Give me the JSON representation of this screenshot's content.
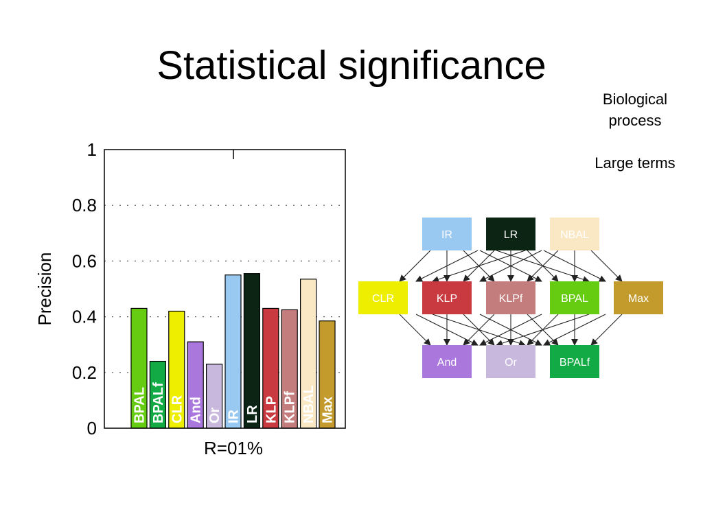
{
  "slide": {
    "title": "Statistical significance",
    "note_line1": "Biological",
    "note_line2": "process",
    "note_line3": "Large terms"
  },
  "chart_data": {
    "type": "bar",
    "xlabel": "R=01%",
    "ylabel": "Precision",
    "ylim": [
      0,
      1
    ],
    "yticks": [
      "0",
      "0.2",
      "0.4",
      "0.6",
      "0.8",
      "1"
    ],
    "grid": "dotted horizontal",
    "categories": [
      "BPAL",
      "BPALf",
      "CLR",
      "And",
      "Or",
      "IR",
      "LR",
      "KLP",
      "KLPf",
      "NBAL",
      "Max"
    ],
    "values": [
      0.43,
      0.24,
      0.42,
      0.31,
      0.23,
      0.55,
      0.555,
      0.43,
      0.425,
      0.535,
      0.385
    ],
    "colors": [
      "#66cc11",
      "#11aa44",
      "#eeee00",
      "#aa77dd",
      "#c8b8dd",
      "#99c8f0",
      "#0b2414",
      "#c83a3f",
      "#c47d7d",
      "#fae8c4",
      "#c39a2c"
    ]
  },
  "diagram": {
    "nodes": [
      {
        "id": "IR",
        "label": "IR",
        "color": "#99c8f0"
      },
      {
        "id": "LR",
        "label": "LR",
        "color": "#0b2414"
      },
      {
        "id": "NBAL",
        "label": "NBAL",
        "color": "#fae8c4"
      },
      {
        "id": "CLR",
        "label": "CLR",
        "color": "#eeee00"
      },
      {
        "id": "KLP",
        "label": "KLP",
        "color": "#c83a3f"
      },
      {
        "id": "KLPf",
        "label": "KLPf",
        "color": "#c47d7d"
      },
      {
        "id": "BPAL",
        "label": "BPAL",
        "color": "#66cc11"
      },
      {
        "id": "Max",
        "label": "Max",
        "color": "#c39a2c"
      },
      {
        "id": "And",
        "label": "And",
        "color": "#aa77dd"
      },
      {
        "id": "Or",
        "label": "Or",
        "color": "#c8b8dd"
      },
      {
        "id": "BPALf",
        "label": "BPALf",
        "color": "#11aa44"
      }
    ],
    "edges": [
      [
        "IR",
        "CLR"
      ],
      [
        "IR",
        "KLP"
      ],
      [
        "IR",
        "KLPf"
      ],
      [
        "IR",
        "BPAL"
      ],
      [
        "IR",
        "Max"
      ],
      [
        "LR",
        "CLR"
      ],
      [
        "LR",
        "KLP"
      ],
      [
        "LR",
        "KLPf"
      ],
      [
        "LR",
        "BPAL"
      ],
      [
        "LR",
        "Max"
      ],
      [
        "NBAL",
        "CLR"
      ],
      [
        "NBAL",
        "KLP"
      ],
      [
        "NBAL",
        "KLPf"
      ],
      [
        "NBAL",
        "BPAL"
      ],
      [
        "NBAL",
        "Max"
      ],
      [
        "CLR",
        "And"
      ],
      [
        "CLR",
        "Or"
      ],
      [
        "CLR",
        "BPALf"
      ],
      [
        "KLP",
        "And"
      ],
      [
        "KLP",
        "Or"
      ],
      [
        "KLP",
        "BPALf"
      ],
      [
        "KLPf",
        "And"
      ],
      [
        "KLPf",
        "Or"
      ],
      [
        "KLPf",
        "BPALf"
      ],
      [
        "BPAL",
        "And"
      ],
      [
        "BPAL",
        "Or"
      ],
      [
        "BPAL",
        "BPALf"
      ],
      [
        "Max",
        "And"
      ],
      [
        "Max",
        "Or"
      ],
      [
        "Max",
        "BPALf"
      ]
    ]
  }
}
